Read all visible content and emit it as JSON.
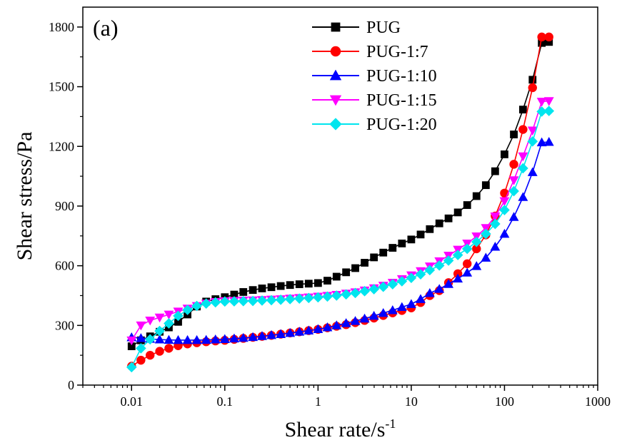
{
  "chart_data": {
    "type": "line",
    "panel_label": "(a)",
    "xlabel": "Shear rate/s",
    "xlabel_superscript": "-1",
    "ylabel": "Shear stress/Pa",
    "x_scale": "log",
    "xlim": [
      0.003,
      1000
    ],
    "ylim": [
      0,
      1900
    ],
    "x_ticks": [
      0.01,
      0.1,
      1,
      10,
      100,
      1000
    ],
    "x_tick_labels": [
      "0.01",
      "0.1",
      "1",
      "10",
      "100",
      "1000"
    ],
    "y_ticks": [
      0,
      300,
      600,
      900,
      1200,
      1500,
      1800
    ],
    "y_tick_labels": [
      "0",
      "300",
      "600",
      "900",
      "1200",
      "1500",
      "1800"
    ],
    "grid": false,
    "legend_position": "top-center",
    "x": [
      0.01,
      0.0126,
      0.0158,
      0.02,
      0.0251,
      0.0316,
      0.0398,
      0.0501,
      0.0631,
      0.0794,
      0.1,
      0.126,
      0.158,
      0.2,
      0.251,
      0.316,
      0.398,
      0.501,
      0.631,
      0.794,
      1,
      1.26,
      1.58,
      2,
      2.51,
      3.16,
      3.98,
      5.01,
      6.31,
      7.94,
      10,
      12.6,
      15.8,
      20,
      25.1,
      31.6,
      39.8,
      50.1,
      63.1,
      79.4,
      100,
      126,
      158,
      200,
      251,
      300
    ],
    "series": [
      {
        "name": "PUG",
        "color": "#000000",
        "marker": "square",
        "values": [
          195,
          225,
          245,
          268,
          290,
          318,
          355,
          395,
          420,
          432,
          442,
          455,
          468,
          478,
          486,
          492,
          498,
          503,
          507,
          510,
          513,
          525,
          545,
          567,
          588,
          615,
          642,
          666,
          690,
          712,
          732,
          757,
          784,
          813,
          838,
          868,
          905,
          950,
          1005,
          1075,
          1160,
          1260,
          1385,
          1535,
          1720,
          1725
        ]
      },
      {
        "name": "PUG-1:7",
        "color": "#ff0000",
        "marker": "circle",
        "values": [
          95,
          125,
          150,
          170,
          185,
          198,
          207,
          213,
          218,
          222,
          225,
          230,
          235,
          240,
          245,
          250,
          256,
          262,
          268,
          274,
          280,
          288,
          296,
          304,
          314,
          325,
          337,
          350,
          363,
          375,
          388,
          415,
          450,
          475,
          515,
          560,
          610,
          685,
          755,
          850,
          965,
          1110,
          1285,
          1495,
          1750,
          1750
        ]
      },
      {
        "name": "PUG-1:10",
        "color": "#0000ff",
        "marker": "triangle-up",
        "values": [
          240,
          236,
          232,
          229,
          227,
          226,
          226,
          226,
          227,
          229,
          231,
          234,
          237,
          241,
          246,
          251,
          256,
          262,
          268,
          274,
          281,
          290,
          300,
          311,
          322,
          334,
          348,
          362,
          376,
          392,
          407,
          432,
          462,
          483,
          508,
          535,
          565,
          598,
          640,
          695,
          760,
          845,
          945,
          1070,
          1220,
          1222
        ]
      },
      {
        "name": "PUG-1:15",
        "color": "#ff00ff",
        "marker": "triangle-down",
        "values": [
          225,
          300,
          325,
          340,
          355,
          370,
          385,
          398,
          410,
          418,
          422,
          424,
          425,
          426,
          428,
          430,
          432,
          435,
          438,
          441,
          445,
          449,
          454,
          460,
          467,
          476,
          487,
          500,
          515,
          533,
          552,
          573,
          597,
          623,
          651,
          681,
          712,
          748,
          790,
          848,
          925,
          1030,
          1150,
          1280,
          1425,
          1428
        ]
      },
      {
        "name": "PUG-1:20",
        "color": "#00e5ee",
        "marker": "diamond",
        "values": [
          90,
          185,
          230,
          272,
          310,
          348,
          378,
          398,
          410,
          416,
          420,
          421,
          422,
          423,
          425,
          427,
          429,
          432,
          435,
          438,
          441,
          445,
          450,
          456,
          463,
          472,
          482,
          494,
          507,
          522,
          539,
          557,
          578,
          601,
          626,
          654,
          685,
          720,
          760,
          810,
          880,
          975,
          1090,
          1225,
          1375,
          1378
        ]
      }
    ]
  }
}
